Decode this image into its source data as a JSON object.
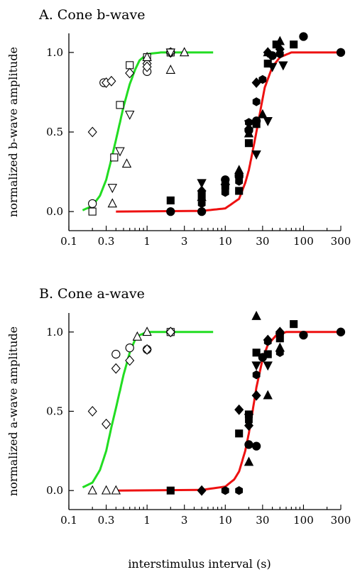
{
  "colors": {
    "fit_short_interval": "#22dd22",
    "fit_long_interval": "#ee1111",
    "markers": "#000000"
  },
  "shared": {
    "xlabel": "interstimulus interval (s)",
    "xscale": "log",
    "xlim": [
      0.1,
      300
    ],
    "x_ticks": [
      0.1,
      0.3,
      1,
      3,
      10,
      30,
      100,
      300
    ],
    "x_tick_labels": [
      "0.1",
      "0.3",
      "1",
      "3",
      "10",
      "30",
      "100",
      "300"
    ],
    "ylim": [
      -0.12,
      1.12
    ],
    "y_ticks": [
      0.0,
      0.5,
      1.0
    ],
    "y_tick_labels": [
      "0.0",
      "0.5",
      "1.0"
    ],
    "grid": false,
    "legend": "none"
  },
  "chart_data": [
    {
      "type": "scatter",
      "title": "A. Cone b-wave",
      "xlabel": "",
      "ylabel": "normalized b-wave amplitude",
      "series": [
        {
          "marker": "open-circle",
          "points": [
            [
              0.2,
              0.05
            ],
            [
              0.28,
              0.81
            ],
            [
              1,
              0.88
            ],
            [
              2,
              1.0
            ]
          ]
        },
        {
          "marker": "open-square",
          "points": [
            [
              0.2,
              0.0
            ],
            [
              0.38,
              0.34
            ],
            [
              0.45,
              0.67
            ],
            [
              0.6,
              0.92
            ],
            [
              1,
              0.97
            ],
            [
              2,
              1.0
            ]
          ]
        },
        {
          "marker": "open-diamond",
          "points": [
            [
              0.2,
              0.5
            ],
            [
              0.3,
              0.81
            ],
            [
              0.35,
              0.82
            ],
            [
              0.6,
              0.87
            ],
            [
              1,
              0.93
            ],
            [
              1,
              0.91
            ],
            [
              2,
              1.0
            ]
          ]
        },
        {
          "marker": "open-triangle-down",
          "points": [
            [
              0.36,
              0.15
            ],
            [
              0.45,
              0.38
            ],
            [
              0.6,
              0.61
            ],
            [
              2,
              1.0
            ]
          ]
        },
        {
          "marker": "open-triangle-up",
          "points": [
            [
              0.36,
              0.05
            ],
            [
              0.55,
              0.3
            ],
            [
              2,
              0.89
            ],
            [
              3,
              1.0
            ],
            [
              1,
              0.97
            ]
          ]
        },
        {
          "marker": "filled-square",
          "points": [
            [
              2,
              0.07
            ],
            [
              5,
              0.1
            ],
            [
              10,
              0.16
            ],
            [
              15,
              0.13
            ],
            [
              20,
              0.43
            ],
            [
              25,
              0.55
            ],
            [
              35,
              0.93
            ],
            [
              45,
              1.05
            ],
            [
              75,
              1.05
            ]
          ]
        },
        {
          "marker": "filled-circle",
          "points": [
            [
              2,
              0.0
            ],
            [
              5,
              0.0
            ],
            [
              10,
              0.2
            ],
            [
              15,
              0.22
            ],
            [
              20,
              0.51
            ],
            [
              25,
              0.57
            ],
            [
              40,
              0.98
            ],
            [
              100,
              1.1
            ],
            [
              300,
              1.0
            ]
          ]
        },
        {
          "marker": "filled-diamond",
          "points": [
            [
              5,
              0.13
            ],
            [
              10,
              0.17
            ],
            [
              15,
              0.23
            ],
            [
              20,
              0.52
            ],
            [
              25,
              0.81
            ],
            [
              35,
              1.0
            ],
            [
              50,
              1.02
            ]
          ]
        },
        {
          "marker": "filled-triangle-up",
          "points": [
            [
              5,
              0.09
            ],
            [
              15,
              0.26
            ],
            [
              20,
              0.49
            ],
            [
              30,
              0.61
            ],
            [
              35,
              1.0
            ],
            [
              50,
              1.07
            ]
          ]
        },
        {
          "marker": "filled-triangle-down",
          "points": [
            [
              5,
              0.18
            ],
            [
              10,
              0.15
            ],
            [
              20,
              0.55
            ],
            [
              25,
              0.36
            ],
            [
              35,
              0.57
            ],
            [
              40,
              0.91
            ],
            [
              55,
              0.92
            ]
          ]
        },
        {
          "marker": "filled-hexagon",
          "points": [
            [
              5,
              0.05
            ],
            [
              10,
              0.12
            ],
            [
              15,
              0.19
            ],
            [
              20,
              0.56
            ],
            [
              25,
              0.69
            ],
            [
              30,
              0.83
            ],
            [
              50,
              0.99
            ],
            [
              300,
              1.0
            ]
          ]
        }
      ],
      "fit_curves": [
        {
          "color": "green",
          "x_range": [
            0.15,
            7
          ],
          "midpoint": 0.43,
          "points": [
            [
              0.15,
              0.008
            ],
            [
              0.2,
              0.036
            ],
            [
              0.25,
              0.1
            ],
            [
              0.3,
              0.2
            ],
            [
              0.35,
              0.33
            ],
            [
              0.4,
              0.45
            ],
            [
              0.45,
              0.56
            ],
            [
              0.5,
              0.66
            ],
            [
              0.6,
              0.8
            ],
            [
              0.7,
              0.89
            ],
            [
              0.8,
              0.95
            ],
            [
              1,
              0.99
            ],
            [
              1.5,
              1.0
            ],
            [
              7,
              1.0
            ]
          ]
        },
        {
          "color": "red",
          "x_range": [
            0.4,
            300
          ],
          "midpoint": 25,
          "points": [
            [
              0.4,
              0.0
            ],
            [
              5,
              0.004
            ],
            [
              10,
              0.02
            ],
            [
              15,
              0.08
            ],
            [
              18,
              0.18
            ],
            [
              20,
              0.26
            ],
            [
              22,
              0.36
            ],
            [
              25,
              0.5
            ],
            [
              28,
              0.63
            ],
            [
              32,
              0.78
            ],
            [
              40,
              0.91
            ],
            [
              50,
              0.97
            ],
            [
              70,
              1.0
            ],
            [
              300,
              1.0
            ]
          ]
        }
      ]
    },
    {
      "type": "scatter",
      "title": "B. Cone a-wave",
      "xlabel": "interstimulus interval (s)",
      "ylabel": "normalized a-wave amplitude",
      "series": [
        {
          "marker": "open-circle",
          "points": [
            [
              0.4,
              0.86
            ],
            [
              0.6,
              0.9
            ],
            [
              1,
              0.89
            ],
            [
              2,
              1.0
            ]
          ]
        },
        {
          "marker": "open-square",
          "points": [
            [
              2,
              1.0
            ]
          ]
        },
        {
          "marker": "open-diamond",
          "points": [
            [
              0.2,
              0.5
            ],
            [
              0.3,
              0.42
            ],
            [
              0.4,
              0.77
            ],
            [
              0.6,
              0.82
            ],
            [
              1,
              0.89
            ],
            [
              2,
              1.0
            ]
          ]
        },
        {
          "marker": "open-triangle-up",
          "points": [
            [
              0.2,
              0.0
            ],
            [
              0.3,
              0.0
            ],
            [
              0.4,
              0.0
            ],
            [
              0.75,
              0.97
            ],
            [
              1,
              1.0
            ]
          ]
        },
        {
          "marker": "filled-square",
          "points": [
            [
              2,
              0.0
            ],
            [
              15,
              0.36
            ],
            [
              20,
              0.48
            ],
            [
              25,
              0.87
            ],
            [
              35,
              0.86
            ],
            [
              50,
              0.96
            ],
            [
              75,
              1.05
            ]
          ]
        },
        {
          "marker": "filled-circle",
          "points": [
            [
              20,
              0.29
            ],
            [
              25,
              0.28
            ],
            [
              30,
              0.84
            ],
            [
              100,
              0.98
            ],
            [
              300,
              1.0
            ]
          ]
        },
        {
          "marker": "filled-diamond",
          "points": [
            [
              5,
              0.0
            ],
            [
              15,
              0.51
            ],
            [
              20,
              0.41
            ],
            [
              25,
              0.6
            ],
            [
              35,
              0.95
            ],
            [
              50,
              1.0
            ]
          ]
        },
        {
          "marker": "filled-triangle-up",
          "points": [
            [
              20,
              0.18
            ],
            [
              25,
              1.1
            ],
            [
              35,
              0.6
            ],
            [
              50,
              0.9
            ]
          ]
        },
        {
          "marker": "filled-triangle-down",
          "points": [
            [
              20,
              0.46
            ],
            [
              25,
              0.79
            ],
            [
              35,
              0.79
            ],
            [
              50,
              0.97
            ]
          ]
        },
        {
          "marker": "filled-hexagon",
          "points": [
            [
              10,
              0.0
            ],
            [
              15,
              0.0
            ],
            [
              20,
              0.44
            ],
            [
              25,
              0.73
            ],
            [
              35,
              0.94
            ],
            [
              50,
              0.87
            ],
            [
              300,
              1.0
            ]
          ]
        }
      ],
      "fit_curves": [
        {
          "color": "green",
          "x_range": [
            0.15,
            7
          ],
          "midpoint": 0.43,
          "points": [
            [
              0.15,
              0.02
            ],
            [
              0.2,
              0.05
            ],
            [
              0.25,
              0.13
            ],
            [
              0.3,
              0.25
            ],
            [
              0.35,
              0.4
            ],
            [
              0.4,
              0.52
            ],
            [
              0.45,
              0.63
            ],
            [
              0.5,
              0.73
            ],
            [
              0.6,
              0.87
            ],
            [
              0.7,
              0.95
            ],
            [
              0.8,
              0.98
            ],
            [
              1,
              1.0
            ],
            [
              7,
              1.0
            ]
          ]
        },
        {
          "color": "red",
          "x_range": [
            0.4,
            300
          ],
          "midpoint": 22,
          "points": [
            [
              0.4,
              0.0
            ],
            [
              5,
              0.004
            ],
            [
              10,
              0.025
            ],
            [
              13,
              0.07
            ],
            [
              15,
              0.12
            ],
            [
              18,
              0.25
            ],
            [
              20,
              0.36
            ],
            [
              22,
              0.48
            ],
            [
              25,
              0.65
            ],
            [
              30,
              0.83
            ],
            [
              35,
              0.92
            ],
            [
              45,
              0.98
            ],
            [
              60,
              1.0
            ],
            [
              300,
              1.0
            ]
          ]
        }
      ]
    }
  ]
}
